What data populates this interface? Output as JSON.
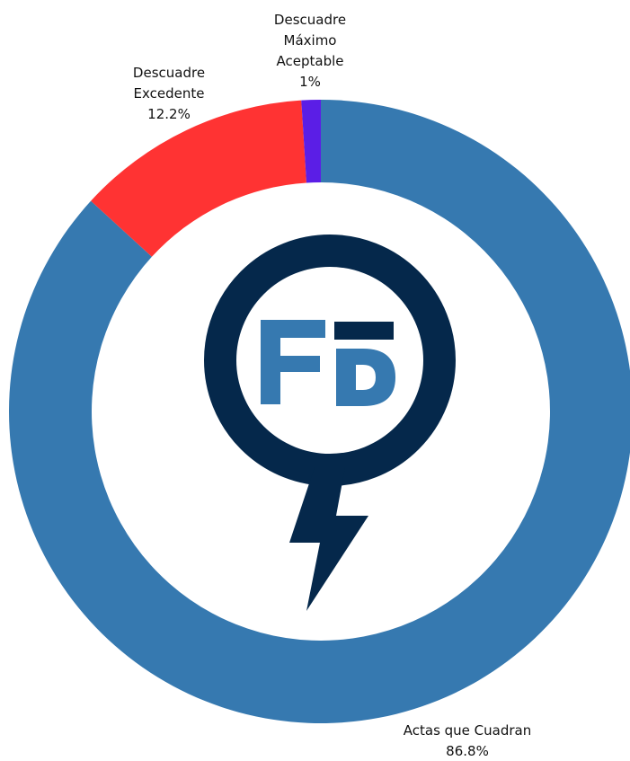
{
  "chart_data": {
    "type": "donut",
    "categories": [
      "Actas que Cuadran",
      "Descuadre Excedente",
      "Descuadre Máximo Aceptable"
    ],
    "values": [
      86.8,
      12.2,
      1
    ],
    "value_labels": [
      "86.8%",
      "12.2%",
      "1%"
    ],
    "colors": [
      "#3679b0",
      "#ff3333",
      "#5b1ee6"
    ]
  }
}
